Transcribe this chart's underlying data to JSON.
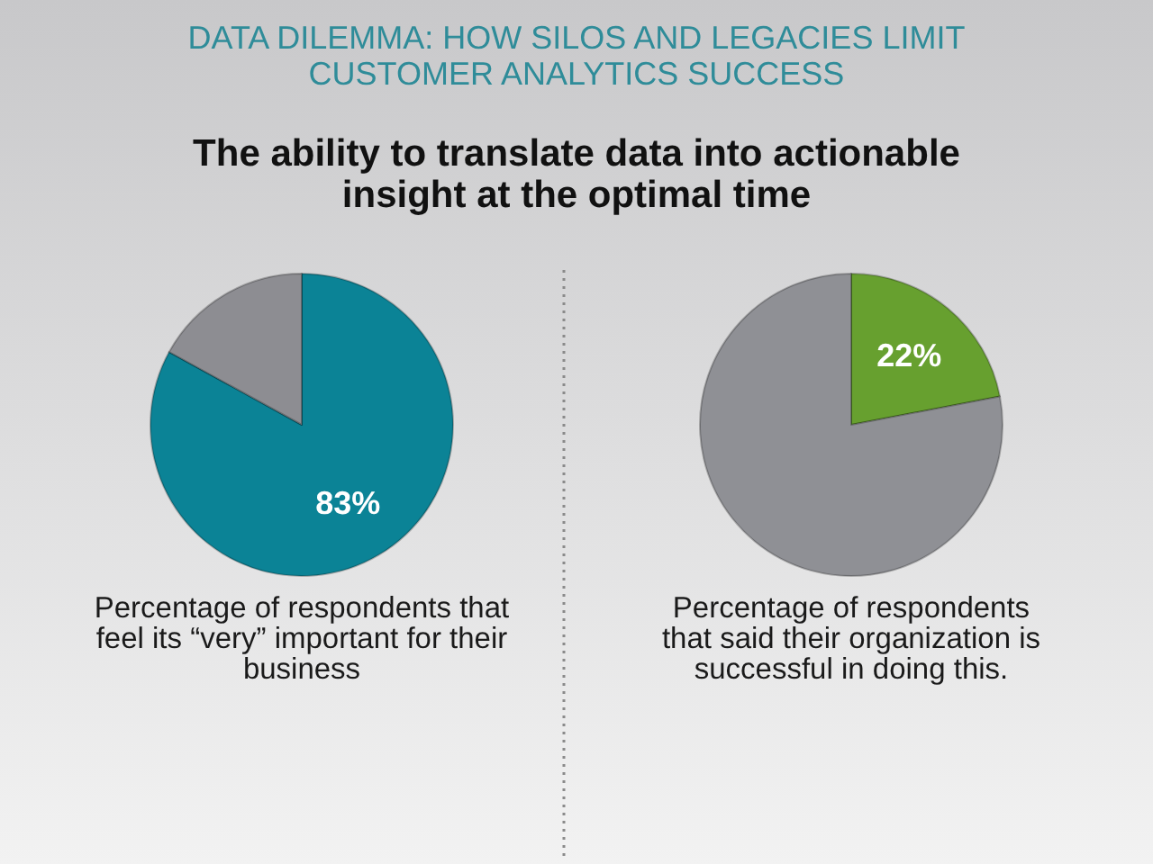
{
  "chart_data": [
    {
      "type": "other",
      "title": "DATA DILEMMA: HOW SILOS AND LEGACIES LIMIT CUSTOMER ANALYTICS SUCCESS",
      "subtitle": "The ability to translate data into actionable insight at the optimal time"
    },
    {
      "type": "pie",
      "categories": [
        null,
        null
      ],
      "values": [
        83,
        17
      ],
      "colors": [
        "#0b8396",
        "#8d8d92"
      ],
      "value_labels": [
        "83%",
        null
      ],
      "annotations": [
        "Percentage of respondents that feel its “very” important for their business"
      ]
    },
    {
      "type": "pie",
      "categories": [
        null,
        null
      ],
      "values": [
        22,
        78
      ],
      "colors": [
        "#67a02f",
        "#8f9095"
      ],
      "value_labels": [
        "22%",
        null
      ],
      "annotations": [
        "Percentage of respondents that said their organization is successful in doing this."
      ]
    }
  ]
}
